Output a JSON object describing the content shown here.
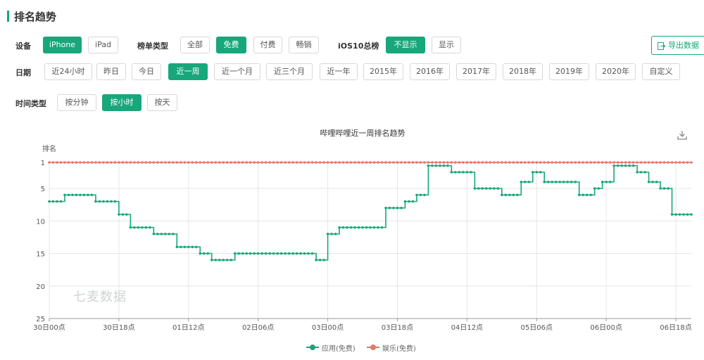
{
  "header": {
    "title": "排名趋势"
  },
  "filters": {
    "device": {
      "label": "设备",
      "options": [
        "iPhone",
        "iPad"
      ],
      "selected": "iPhone"
    },
    "list_type": {
      "label": "榜单类型",
      "options": [
        "全部",
        "免费",
        "付费",
        "畅销"
      ],
      "selected": "免费"
    },
    "ios10": {
      "label": "iOS10总榜",
      "options": [
        "不显示",
        "显示"
      ],
      "selected": "不显示"
    },
    "date": {
      "label": "日期",
      "options": [
        "近24小时",
        "昨日",
        "今日",
        "近一周",
        "近一个月",
        "近三个月",
        "近一年",
        "2015年",
        "2016年",
        "2017年",
        "2018年",
        "2019年",
        "2020年",
        "自定义"
      ],
      "selected": "近一周"
    },
    "time_type": {
      "label": "时间类型",
      "options": [
        "按分钟",
        "按小时",
        "按天"
      ],
      "selected": "按小时"
    }
  },
  "export_label": "导出数据",
  "watermark": "七麦数据",
  "icons": {
    "export": "export-icon",
    "download": "download-icon"
  },
  "colors": {
    "accent": "#17a77a",
    "app_series": "#17a77a",
    "category_series": "#e8746a"
  },
  "chart_data": {
    "type": "line",
    "title": "哔哩哔哩近一周排名趋势",
    "ylabel": "排名",
    "y_reversed": true,
    "ylim": [
      1,
      25
    ],
    "yticks": [
      1,
      5,
      10,
      15,
      20,
      25
    ],
    "xlim": [
      0,
      166
    ],
    "x_unit": "hours since 30日00点",
    "xticks": [
      {
        "x": 0,
        "label": "30日00点"
      },
      {
        "x": 18,
        "label": "30日18点"
      },
      {
        "x": 36,
        "label": "01日12点"
      },
      {
        "x": 54,
        "label": "02日06点"
      },
      {
        "x": 72,
        "label": "03日00点"
      },
      {
        "x": 90,
        "label": "03日18点"
      },
      {
        "x": 108,
        "label": "04日12点"
      },
      {
        "x": 126,
        "label": "05日06点"
      },
      {
        "x": 144,
        "label": "06日00点"
      },
      {
        "x": 162,
        "label": "06日18点"
      }
    ],
    "grid": true,
    "legend_position": "bottom",
    "series": [
      {
        "name": "应用(免费)",
        "color": "#17a77a",
        "steps": [
          [
            0,
            7
          ],
          [
            4,
            6
          ],
          [
            12,
            7
          ],
          [
            18,
            9
          ],
          [
            21,
            11
          ],
          [
            27,
            12
          ],
          [
            33,
            14
          ],
          [
            39,
            15
          ],
          [
            42,
            16
          ],
          [
            48,
            15
          ],
          [
            69,
            16
          ],
          [
            72,
            12
          ],
          [
            75,
            11
          ],
          [
            87,
            8
          ],
          [
            92,
            7
          ],
          [
            95,
            6
          ],
          [
            98,
            1.5
          ],
          [
            104,
            2.5
          ],
          [
            110,
            5
          ],
          [
            117,
            6
          ],
          [
            122,
            4
          ],
          [
            125,
            2.5
          ],
          [
            128,
            4
          ],
          [
            137,
            6
          ],
          [
            141,
            5
          ],
          [
            143,
            4
          ],
          [
            146,
            1.5
          ],
          [
            152,
            2.5
          ],
          [
            155,
            4
          ],
          [
            158,
            5
          ],
          [
            161,
            9
          ]
        ],
        "end": 166
      },
      {
        "name": "娱乐(免费)",
        "color": "#e8746a",
        "steps": [
          [
            0,
            1
          ]
        ],
        "end": 166
      }
    ]
  }
}
